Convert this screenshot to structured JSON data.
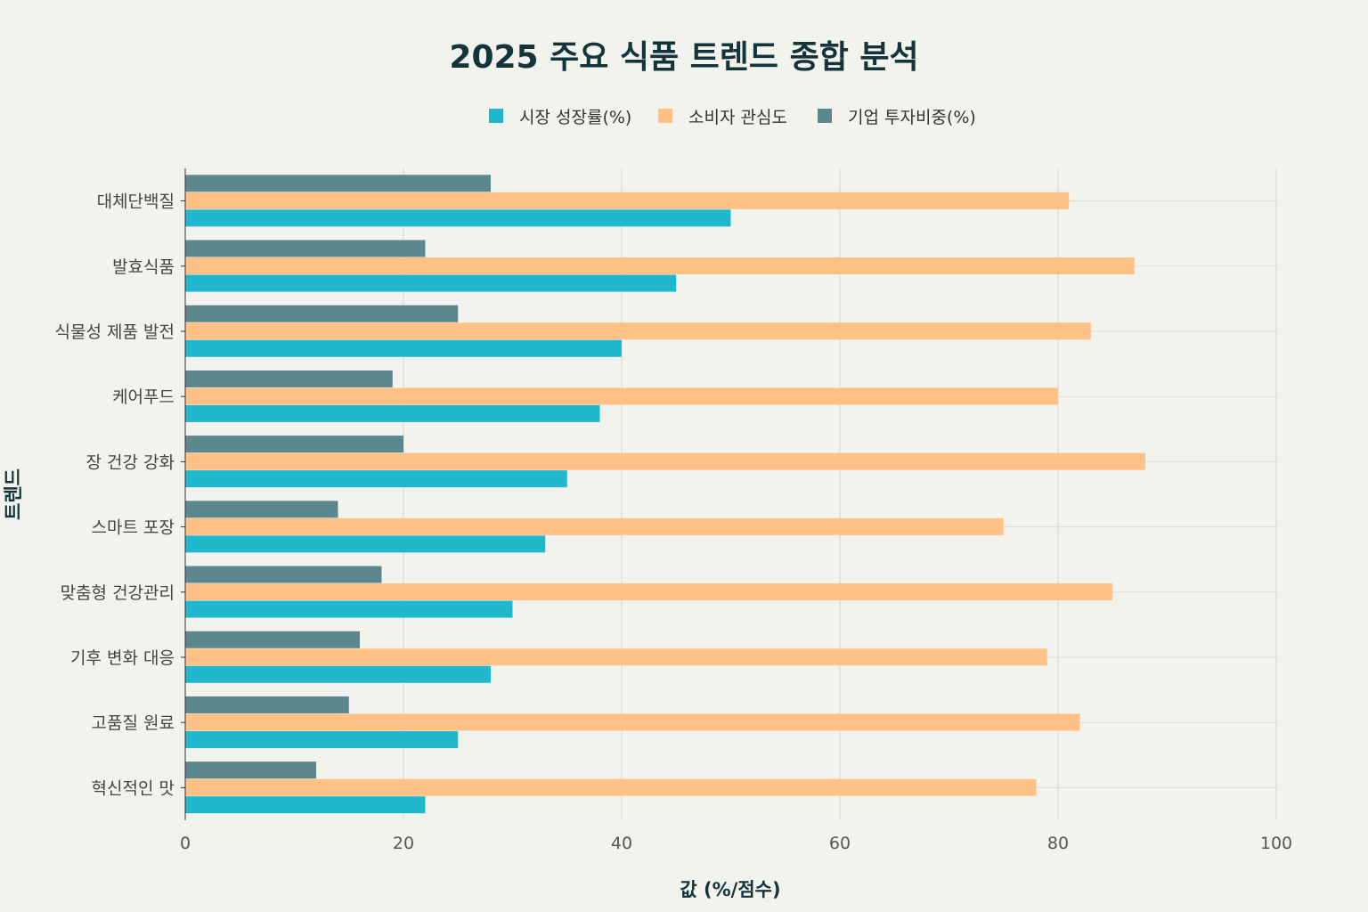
{
  "chart_data": {
    "type": "bar",
    "orientation": "horizontal",
    "title": "2025 주요 식품 트렌드 종합 분석",
    "xlabel": "값 (%/점수)",
    "ylabel": "트렌드",
    "xlim": [
      0,
      100
    ],
    "xticks": [
      0,
      20,
      40,
      60,
      80,
      100
    ],
    "grid": true,
    "legend_position": "top",
    "categories": [
      "대체단백질",
      "발효식품",
      "식물성 제품 발전",
      "케어푸드",
      "장 건강 강화",
      "스마트 포장",
      "맞춤형 건강관리",
      "기후 변화 대응",
      "고품질 원료",
      "혁신적인 맛"
    ],
    "series": [
      {
        "name": "시장 성장률(%)",
        "color": "#1fb8cd",
        "values": [
          50,
          45,
          40,
          38,
          35,
          33,
          30,
          28,
          25,
          22
        ]
      },
      {
        "name": "소비자 관심도",
        "color": "#ffc185",
        "values": [
          81,
          87,
          83,
          80,
          88,
          75,
          85,
          79,
          82,
          78
        ]
      },
      {
        "name": "기업 투자비중(%)",
        "color": "#5d878f",
        "values": [
          28,
          22,
          25,
          19,
          20,
          14,
          18,
          16,
          15,
          12
        ]
      }
    ]
  }
}
